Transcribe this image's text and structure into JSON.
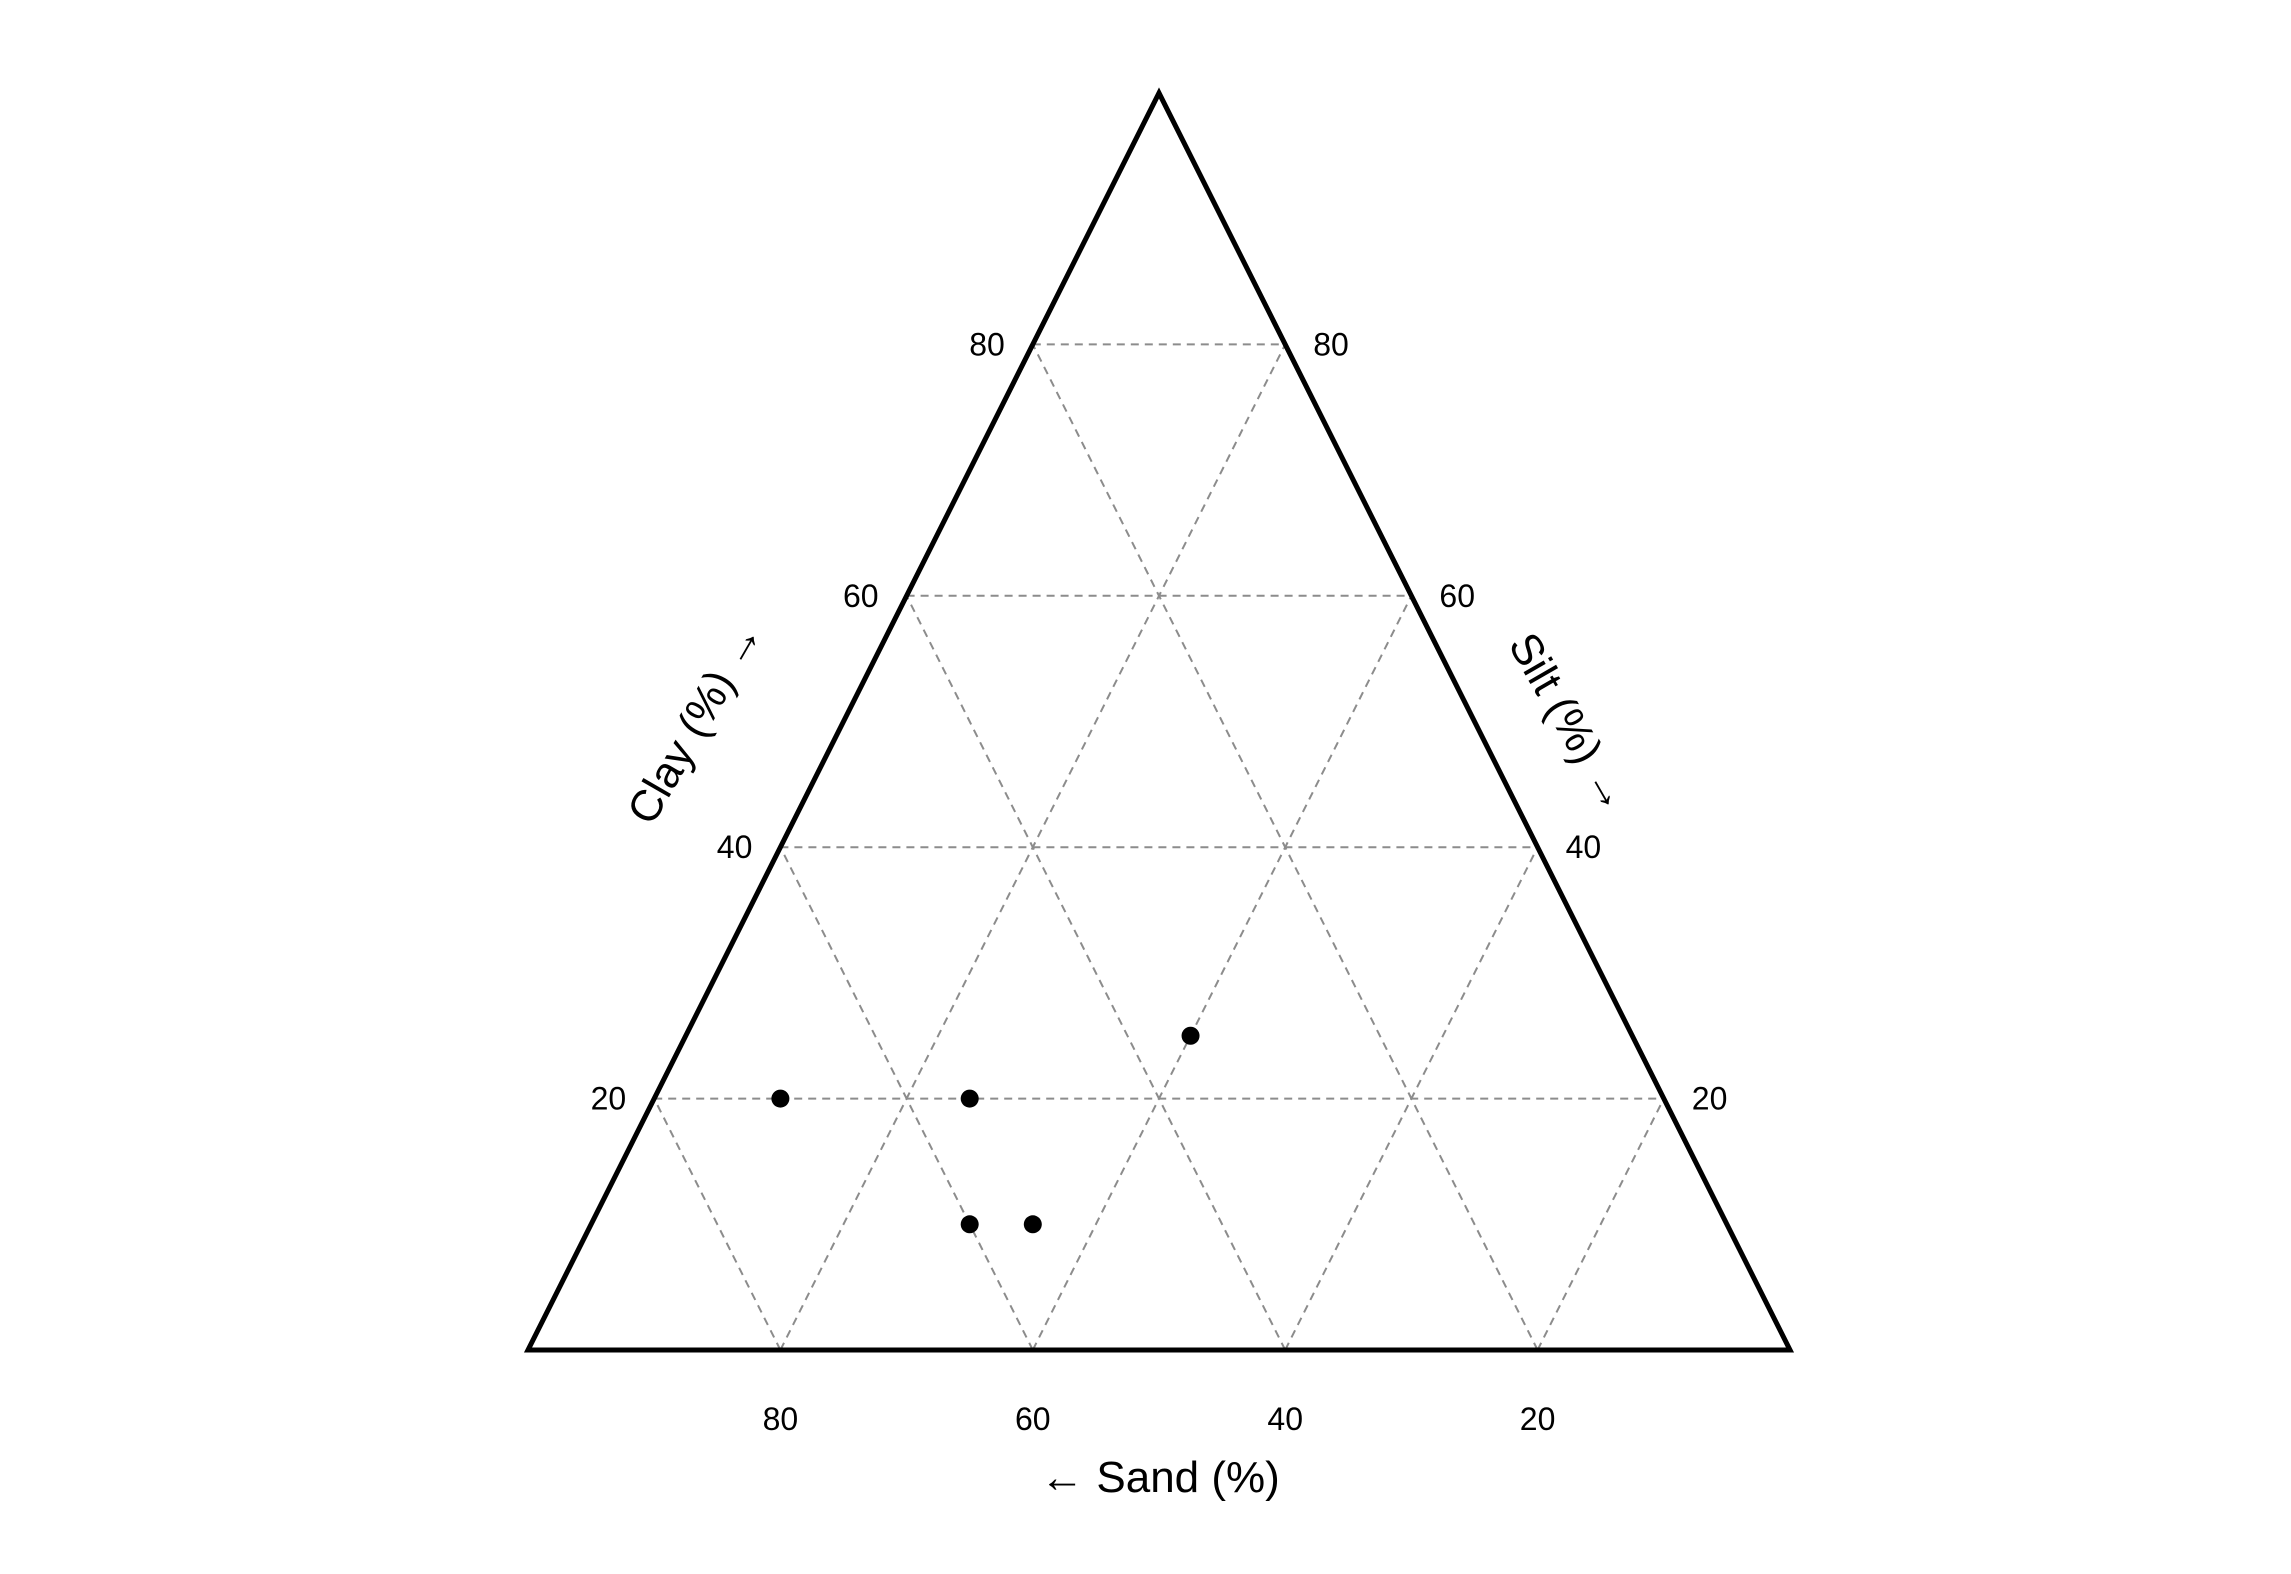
{
  "chart_data": {
    "type": "scatter",
    "subtype": "ternary",
    "components": [
      "sand",
      "silt",
      "clay"
    ],
    "grid": true,
    "grid_interval": 20,
    "axes": {
      "clay": {
        "title": "Clay (%) →",
        "ticks": [
          20,
          40,
          60,
          80
        ],
        "tick_labels": [
          "20",
          "40",
          "60",
          "80"
        ]
      },
      "silt": {
        "title": "Silt (%) →",
        "ticks": [
          20,
          40,
          60,
          80
        ],
        "tick_labels": [
          "20",
          "40",
          "60",
          "80"
        ]
      },
      "sand": {
        "title": "← Sand (%)",
        "ticks": [
          80,
          60,
          40,
          20
        ],
        "tick_labels": [
          "80",
          "60",
          "40",
          "20"
        ]
      }
    },
    "points": [
      {
        "sand": 70,
        "silt": 10,
        "clay": 20
      },
      {
        "sand": 55,
        "silt": 25,
        "clay": 20
      },
      {
        "sand": 60,
        "silt": 30,
        "clay": 10
      },
      {
        "sand": 55,
        "silt": 35,
        "clay": 10
      },
      {
        "sand": 35,
        "silt": 40,
        "clay": 25
      }
    ],
    "colors": {
      "frame": "#000000",
      "grid": "#8c8c8c",
      "point": "#000000"
    }
  }
}
